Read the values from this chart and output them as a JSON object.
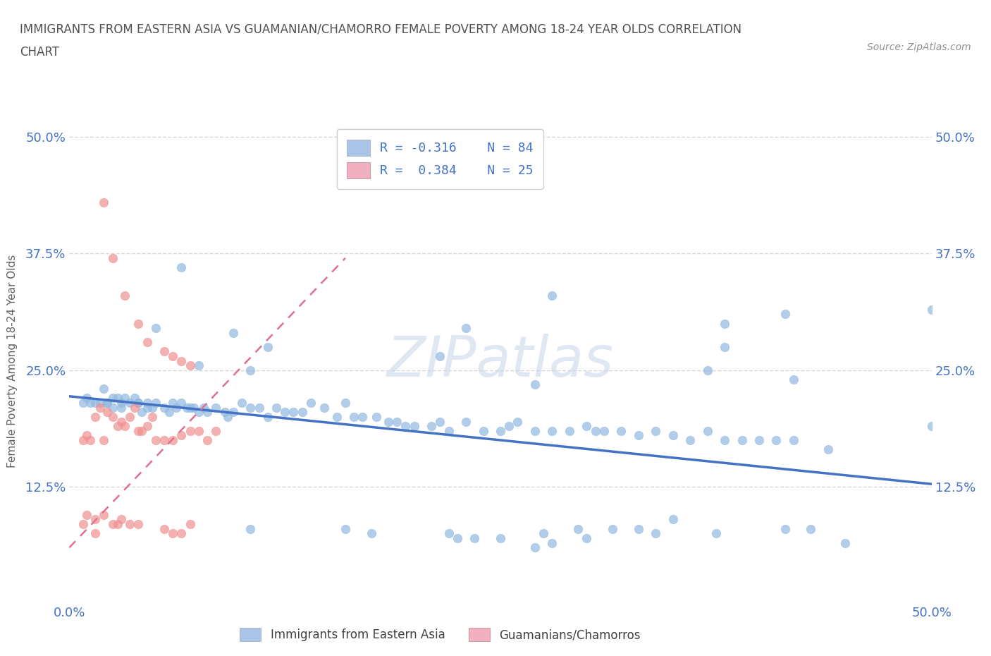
{
  "title_line1": "IMMIGRANTS FROM EASTERN ASIA VS GUAMANIAN/CHAMORRO FEMALE POVERTY AMONG 18-24 YEAR OLDS CORRELATION",
  "title_line2": "CHART",
  "source_text": "Source: ZipAtlas.com",
  "ylabel": "Female Poverty Among 18-24 Year Olds",
  "xlim": [
    0.0,
    0.5
  ],
  "ylim": [
    0.0,
    0.52
  ],
  "x_tick_labels": [
    "0.0%",
    "50.0%"
  ],
  "x_tick_values": [
    0.0,
    0.5
  ],
  "y_tick_labels": [
    "12.5%",
    "25.0%",
    "37.5%",
    "50.0%"
  ],
  "y_tick_values": [
    0.125,
    0.25,
    0.375,
    0.5
  ],
  "watermark": "ZIPatlas",
  "blue_color": "#aac4e8",
  "pink_color": "#f0b0c0",
  "blue_line_color": "#4472c4",
  "pink_line_color": "#e07090",
  "blue_scatter_color": "#90b8e0",
  "pink_scatter_color": "#f09090",
  "background_color": "#ffffff",
  "grid_color": "#d8d8d8",
  "title_color": "#505050",
  "axis_label_color": "#606060",
  "tick_label_color": "#4472c4",
  "blue_points_x": [
    0.008,
    0.01,
    0.012,
    0.015,
    0.018,
    0.02,
    0.022,
    0.022,
    0.025,
    0.025,
    0.028,
    0.03,
    0.03,
    0.032,
    0.035,
    0.038,
    0.04,
    0.04,
    0.042,
    0.045,
    0.045,
    0.048,
    0.05,
    0.055,
    0.058,
    0.06,
    0.062,
    0.065,
    0.068,
    0.07,
    0.072,
    0.075,
    0.078,
    0.08,
    0.085,
    0.09,
    0.092,
    0.095,
    0.1,
    0.105,
    0.11,
    0.115,
    0.12,
    0.125,
    0.13,
    0.135,
    0.14,
    0.148,
    0.155,
    0.16,
    0.165,
    0.17,
    0.178,
    0.185,
    0.19,
    0.195,
    0.2,
    0.21,
    0.215,
    0.22,
    0.23,
    0.24,
    0.25,
    0.255,
    0.26,
    0.27,
    0.28,
    0.29,
    0.3,
    0.305,
    0.31,
    0.32,
    0.33,
    0.34,
    0.35,
    0.36,
    0.37,
    0.38,
    0.39,
    0.4,
    0.41,
    0.42,
    0.44,
    0.5
  ],
  "blue_points_y": [
    0.215,
    0.22,
    0.215,
    0.215,
    0.215,
    0.23,
    0.215,
    0.215,
    0.22,
    0.21,
    0.22,
    0.215,
    0.21,
    0.22,
    0.215,
    0.22,
    0.215,
    0.215,
    0.205,
    0.21,
    0.215,
    0.21,
    0.215,
    0.21,
    0.205,
    0.215,
    0.21,
    0.215,
    0.21,
    0.21,
    0.21,
    0.205,
    0.21,
    0.205,
    0.21,
    0.205,
    0.2,
    0.205,
    0.215,
    0.21,
    0.21,
    0.2,
    0.21,
    0.205,
    0.205,
    0.205,
    0.215,
    0.21,
    0.2,
    0.215,
    0.2,
    0.2,
    0.2,
    0.195,
    0.195,
    0.19,
    0.19,
    0.19,
    0.195,
    0.185,
    0.195,
    0.185,
    0.185,
    0.19,
    0.195,
    0.185,
    0.185,
    0.185,
    0.19,
    0.185,
    0.185,
    0.185,
    0.18,
    0.185,
    0.18,
    0.175,
    0.185,
    0.175,
    0.175,
    0.175,
    0.175,
    0.175,
    0.165,
    0.19
  ],
  "blue_outliers_x": [
    0.065,
    0.28,
    0.5,
    0.415,
    0.38,
    0.05,
    0.23,
    0.095,
    0.38,
    0.115,
    0.215,
    0.075,
    0.37,
    0.105,
    0.42,
    0.27
  ],
  "blue_outliers_y": [
    0.36,
    0.33,
    0.315,
    0.31,
    0.3,
    0.295,
    0.295,
    0.29,
    0.275,
    0.275,
    0.265,
    0.255,
    0.25,
    0.25,
    0.24,
    0.235
  ],
  "blue_low_x": [
    0.105,
    0.16,
    0.175,
    0.22,
    0.225,
    0.235,
    0.25,
    0.275,
    0.28,
    0.295,
    0.3,
    0.315,
    0.33,
    0.34,
    0.35,
    0.375,
    0.415,
    0.43,
    0.45,
    0.27
  ],
  "blue_low_y": [
    0.08,
    0.08,
    0.075,
    0.075,
    0.07,
    0.07,
    0.07,
    0.075,
    0.065,
    0.08,
    0.07,
    0.08,
    0.08,
    0.075,
    0.09,
    0.075,
    0.08,
    0.08,
    0.065,
    0.06
  ],
  "pink_points_x": [
    0.008,
    0.01,
    0.012,
    0.015,
    0.018,
    0.02,
    0.022,
    0.025,
    0.028,
    0.03,
    0.032,
    0.035,
    0.038,
    0.04,
    0.042,
    0.045,
    0.048,
    0.05,
    0.055,
    0.06,
    0.065,
    0.07,
    0.075,
    0.08,
    0.085
  ],
  "pink_points_y": [
    0.175,
    0.18,
    0.175,
    0.2,
    0.21,
    0.175,
    0.205,
    0.2,
    0.19,
    0.195,
    0.19,
    0.2,
    0.21,
    0.185,
    0.185,
    0.19,
    0.2,
    0.175,
    0.175,
    0.175,
    0.18,
    0.185,
    0.185,
    0.175,
    0.185
  ],
  "pink_outliers_x": [
    0.02,
    0.025,
    0.032,
    0.04,
    0.045,
    0.055,
    0.06,
    0.065,
    0.07,
    0.015
  ],
  "pink_outliers_y": [
    0.43,
    0.37,
    0.33,
    0.3,
    0.28,
    0.27,
    0.265,
    0.26,
    0.255,
    0.075
  ],
  "pink_low_x": [
    0.008,
    0.01,
    0.015,
    0.02,
    0.025,
    0.028,
    0.03,
    0.035,
    0.04,
    0.055,
    0.06,
    0.065,
    0.07
  ],
  "pink_low_y": [
    0.085,
    0.095,
    0.09,
    0.095,
    0.085,
    0.085,
    0.09,
    0.085,
    0.085,
    0.08,
    0.075,
    0.075,
    0.085
  ],
  "blue_line_x0": 0.0,
  "blue_line_y0": 0.222,
  "blue_line_x1": 0.5,
  "blue_line_y1": 0.128,
  "pink_line_x0": 0.0,
  "pink_line_y0": 0.06,
  "pink_line_x1": 0.16,
  "pink_line_y1": 0.37
}
